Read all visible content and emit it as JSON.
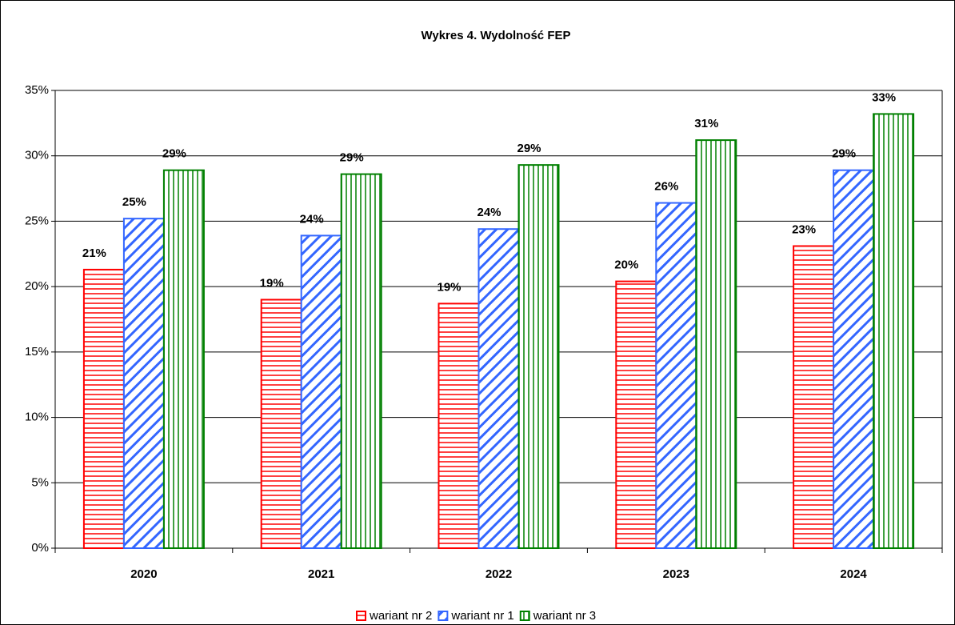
{
  "chart_data": {
    "type": "bar",
    "title": "Wykres 4. Wydolność FEP",
    "categories": [
      "2020",
      "2021",
      "2022",
      "2023",
      "2024"
    ],
    "series": [
      {
        "name": "wariant nr 2",
        "color": "#ff0000",
        "pattern": "horizontal",
        "values": [
          21.3,
          19.0,
          18.7,
          20.4,
          23.1
        ],
        "value_labels": [
          "21%",
          "19%",
          "19%",
          "20%",
          "23%"
        ]
      },
      {
        "name": "wariant nr 1",
        "color": "#3366ff",
        "pattern": "diagonal",
        "values": [
          25.2,
          23.9,
          24.4,
          26.4,
          28.9
        ],
        "value_labels": [
          "25%",
          "24%",
          "24%",
          "26%",
          "29%"
        ]
      },
      {
        "name": "wariant nr 3",
        "color": "#008000",
        "pattern": "vertical",
        "values": [
          28.9,
          28.6,
          29.3,
          31.2,
          33.2
        ],
        "value_labels": [
          "29%",
          "29%",
          "29%",
          "31%",
          "33%"
        ]
      }
    ],
    "ylim": [
      0,
      35
    ],
    "yticks": [
      {
        "value": 0,
        "label": "0%"
      },
      {
        "value": 5,
        "label": "5%"
      },
      {
        "value": 10,
        "label": "10%"
      },
      {
        "value": 15,
        "label": "15%"
      },
      {
        "value": 20,
        "label": "20%"
      },
      {
        "value": 25,
        "label": "25%"
      },
      {
        "value": 30,
        "label": "30%"
      },
      {
        "value": 35,
        "label": "35%"
      }
    ],
    "grid": true,
    "legend": "bottom"
  }
}
